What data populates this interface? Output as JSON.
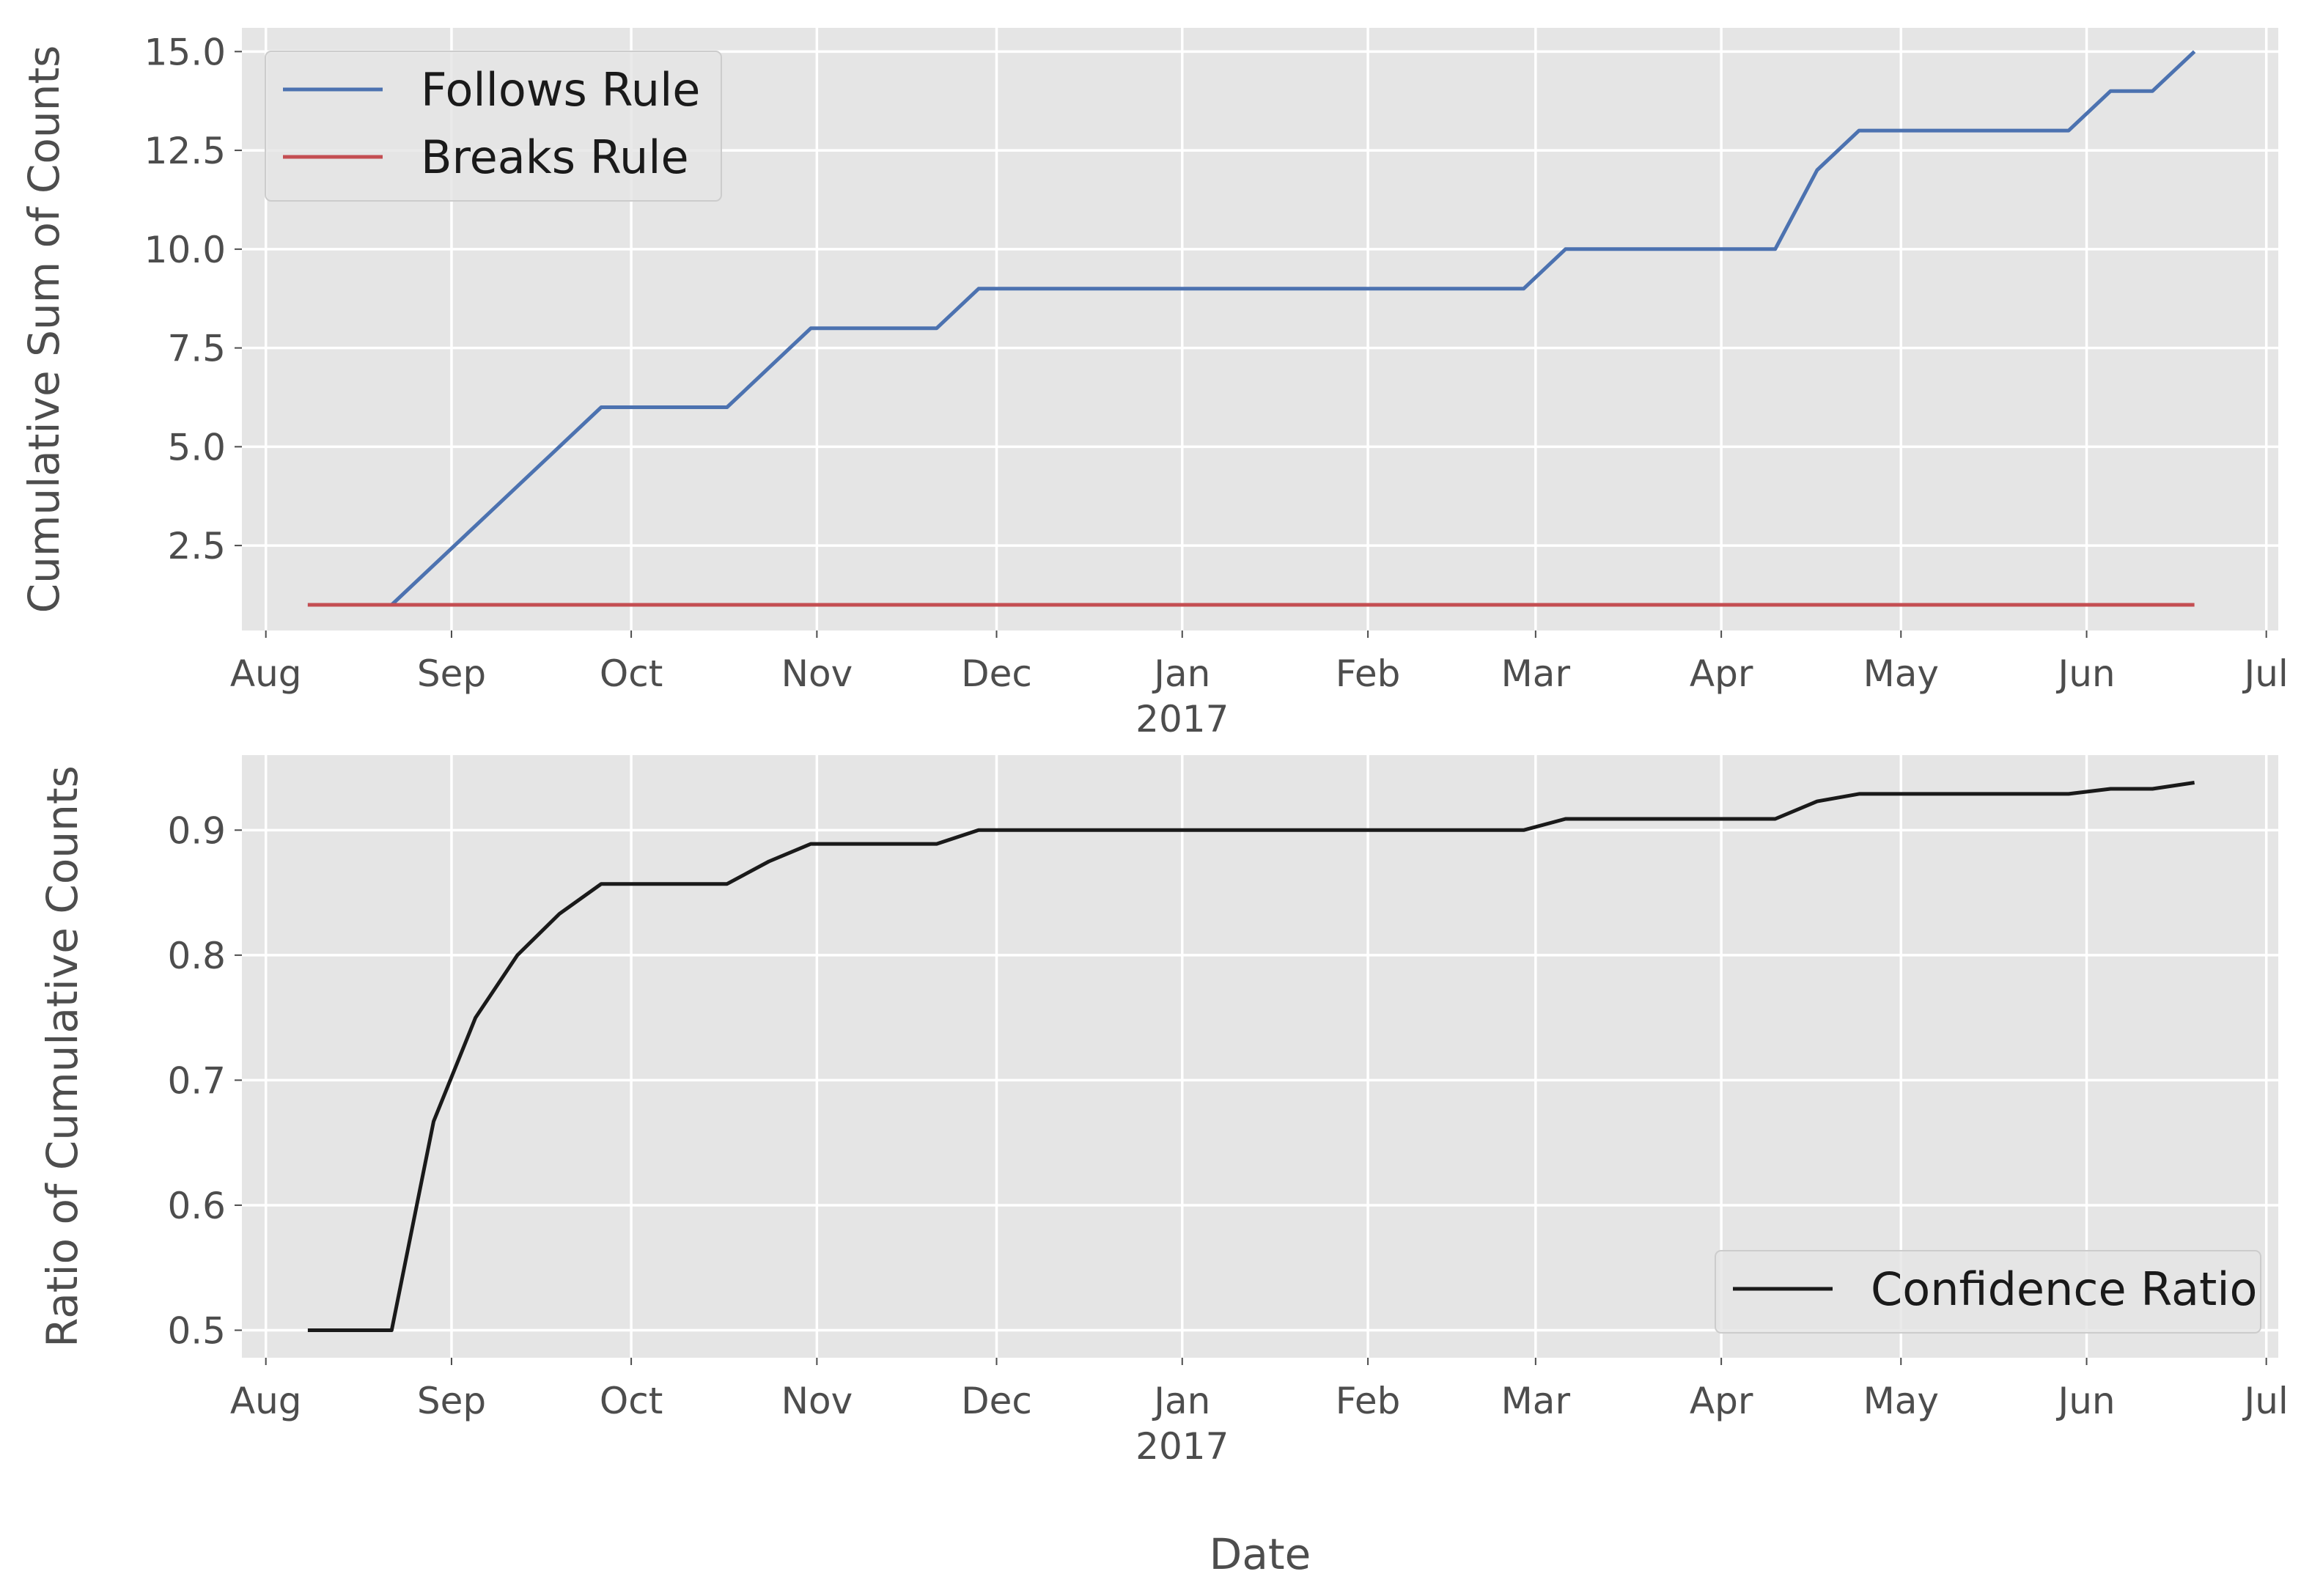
{
  "figure": {
    "xlabel": "Date"
  },
  "chart_data": [
    {
      "type": "line",
      "ylabel": "Cumulative Sum of Counts",
      "xlabel": "",
      "x_ticks": [
        "Aug",
        "Sep",
        "Oct",
        "Nov",
        "Dec",
        "Jan",
        "Feb",
        "Mar",
        "Apr",
        "May",
        "Jun",
        "Jul"
      ],
      "x_tick_year": "2017",
      "y_ticks": [
        "2.5",
        "5.0",
        "7.5",
        "10.0",
        "12.5",
        "15.0"
      ],
      "ylim": [
        0.35,
        15.6
      ],
      "xlim": [
        "2016-07-28",
        "2017-07-03"
      ],
      "grid": true,
      "legend_position": "upper-left",
      "series": [
        {
          "name": "Follows Rule",
          "color": "#4c72b0",
          "x": [
            "2016-08-08",
            "2016-08-22",
            "2016-08-29",
            "2016-09-05",
            "2016-09-12",
            "2016-09-19",
            "2016-09-26",
            "2016-10-03",
            "2016-10-10",
            "2016-10-17",
            "2016-10-24",
            "2016-10-31",
            "2016-11-07",
            "2016-11-14",
            "2016-11-21",
            "2016-11-28",
            "2017-02-27",
            "2017-03-06",
            "2017-04-10",
            "2017-04-17",
            "2017-04-24",
            "2017-05-29",
            "2017-06-05",
            "2017-06-12",
            "2017-06-19"
          ],
          "values": [
            1,
            1,
            2,
            3,
            4,
            5,
            6,
            6,
            6,
            6,
            7,
            8,
            8,
            8,
            8,
            9,
            9,
            10,
            10,
            12,
            13,
            13,
            14,
            14,
            15
          ]
        },
        {
          "name": "Breaks Rule",
          "color": "#c44e52",
          "x": [
            "2016-08-08",
            "2017-06-19"
          ],
          "values": [
            1,
            1
          ]
        }
      ]
    },
    {
      "type": "line",
      "ylabel": "Ratio of Cumulative Counts",
      "xlabel": "Date",
      "x_ticks": [
        "Aug",
        "Sep",
        "Oct",
        "Nov",
        "Dec",
        "Jan",
        "Feb",
        "Mar",
        "Apr",
        "May",
        "Jun",
        "Jul"
      ],
      "x_tick_year": "2017",
      "y_ticks": [
        "0.5",
        "0.6",
        "0.7",
        "0.8",
        "0.9"
      ],
      "ylim": [
        0.478,
        0.96
      ],
      "xlim": [
        "2016-07-28",
        "2017-07-03"
      ],
      "grid": true,
      "legend_position": "lower-right",
      "series": [
        {
          "name": "Confidence Ratio",
          "color": "#1a1a1a",
          "x": [
            "2016-08-08",
            "2016-08-22",
            "2016-08-29",
            "2016-09-05",
            "2016-09-12",
            "2016-09-19",
            "2016-09-26",
            "2016-10-03",
            "2016-10-10",
            "2016-10-17",
            "2016-10-24",
            "2016-10-31",
            "2016-11-07",
            "2016-11-14",
            "2016-11-21",
            "2016-11-28",
            "2017-02-27",
            "2017-03-06",
            "2017-04-10",
            "2017-04-17",
            "2017-04-24",
            "2017-05-29",
            "2017-06-05",
            "2017-06-12",
            "2017-06-19"
          ],
          "values": [
            0.5,
            0.5,
            0.667,
            0.75,
            0.8,
            0.833,
            0.857,
            0.857,
            0.857,
            0.857,
            0.875,
            0.889,
            0.889,
            0.889,
            0.889,
            0.9,
            0.9,
            0.909,
            0.909,
            0.923,
            0.929,
            0.929,
            0.933,
            0.933,
            0.938
          ]
        }
      ]
    }
  ]
}
